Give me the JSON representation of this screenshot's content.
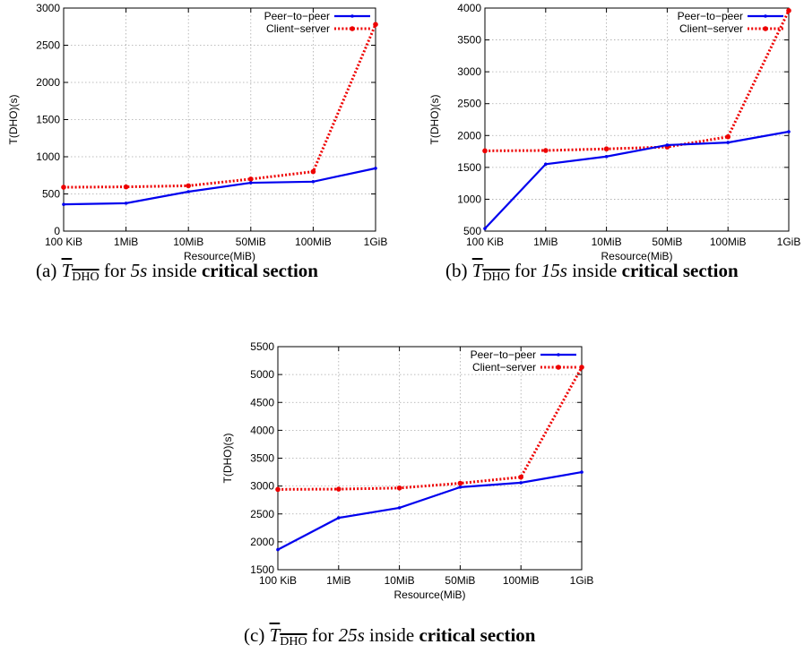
{
  "chart_data": [
    {
      "type": "line",
      "id": "a",
      "categories": [
        "100 KiB",
        "1MiB",
        "10MiB",
        "50MiB",
        "100MiB",
        "1GiB"
      ],
      "xlabel": "Resource(MiB)",
      "ylabel": "T(DHO)(s)",
      "ylim": [
        0,
        3000
      ],
      "yticks": [
        0,
        500,
        1000,
        1500,
        2000,
        2500,
        3000
      ],
      "grid": true,
      "legend_position": "top-right",
      "series": [
        {
          "name": "Peer−to−peer",
          "color": "#0000ee",
          "style": "solid",
          "values": [
            360,
            375,
            530,
            650,
            665,
            845
          ]
        },
        {
          "name": "Client−server",
          "color": "#ee0000",
          "style": "dotted",
          "values": [
            590,
            595,
            610,
            700,
            800,
            2780
          ]
        }
      ],
      "caption": {
        "prefix": "(a)",
        "time": "5s",
        "mid": "inside",
        "bold": "critical section"
      }
    },
    {
      "type": "line",
      "id": "b",
      "categories": [
        "100 KiB",
        "1MiB",
        "10MiB",
        "50MiB",
        "100MiB",
        "1GiB"
      ],
      "xlabel": "Resource(MiB)",
      "ylabel": "T(DHO)(s)",
      "ylim": [
        500,
        4000
      ],
      "yticks": [
        500,
        1000,
        1500,
        2000,
        2500,
        3000,
        3500,
        4000
      ],
      "grid": true,
      "legend_position": "top-right",
      "series": [
        {
          "name": "Peer−to−peer",
          "color": "#0000ee",
          "style": "solid",
          "values": [
            540,
            1550,
            1670,
            1850,
            1890,
            2060
          ]
        },
        {
          "name": "Client−server",
          "color": "#ee0000",
          "style": "dotted",
          "values": [
            1760,
            1765,
            1790,
            1820,
            1980,
            3960
          ]
        }
      ],
      "caption": {
        "prefix": "(b)",
        "time": "15s",
        "mid": "inside",
        "bold": "critical section"
      }
    },
    {
      "type": "line",
      "id": "c",
      "categories": [
        "100 KiB",
        "1MiB",
        "10MiB",
        "50MiB",
        "100MiB",
        "1GiB"
      ],
      "xlabel": "Resource(MiB)",
      "ylabel": "T(DHO)(s)",
      "ylim": [
        1500,
        5500
      ],
      "yticks": [
        1500,
        2000,
        2500,
        3000,
        3500,
        4000,
        4500,
        5000,
        5500
      ],
      "grid": true,
      "legend_position": "top-right",
      "series": [
        {
          "name": "Peer−to−peer",
          "color": "#0000ee",
          "style": "solid",
          "values": [
            1860,
            2430,
            2610,
            2980,
            3060,
            3250
          ]
        },
        {
          "name": "Client−server",
          "color": "#ee0000",
          "style": "dotted",
          "values": [
            2940,
            2945,
            2965,
            3050,
            3160,
            5130
          ]
        }
      ],
      "caption": {
        "prefix": "(c)",
        "time": "25s",
        "mid": "inside",
        "bold": "critical section"
      }
    }
  ],
  "caption_symbol": {
    "base": "T",
    "sub": "DHO",
    "word_for": "for"
  }
}
